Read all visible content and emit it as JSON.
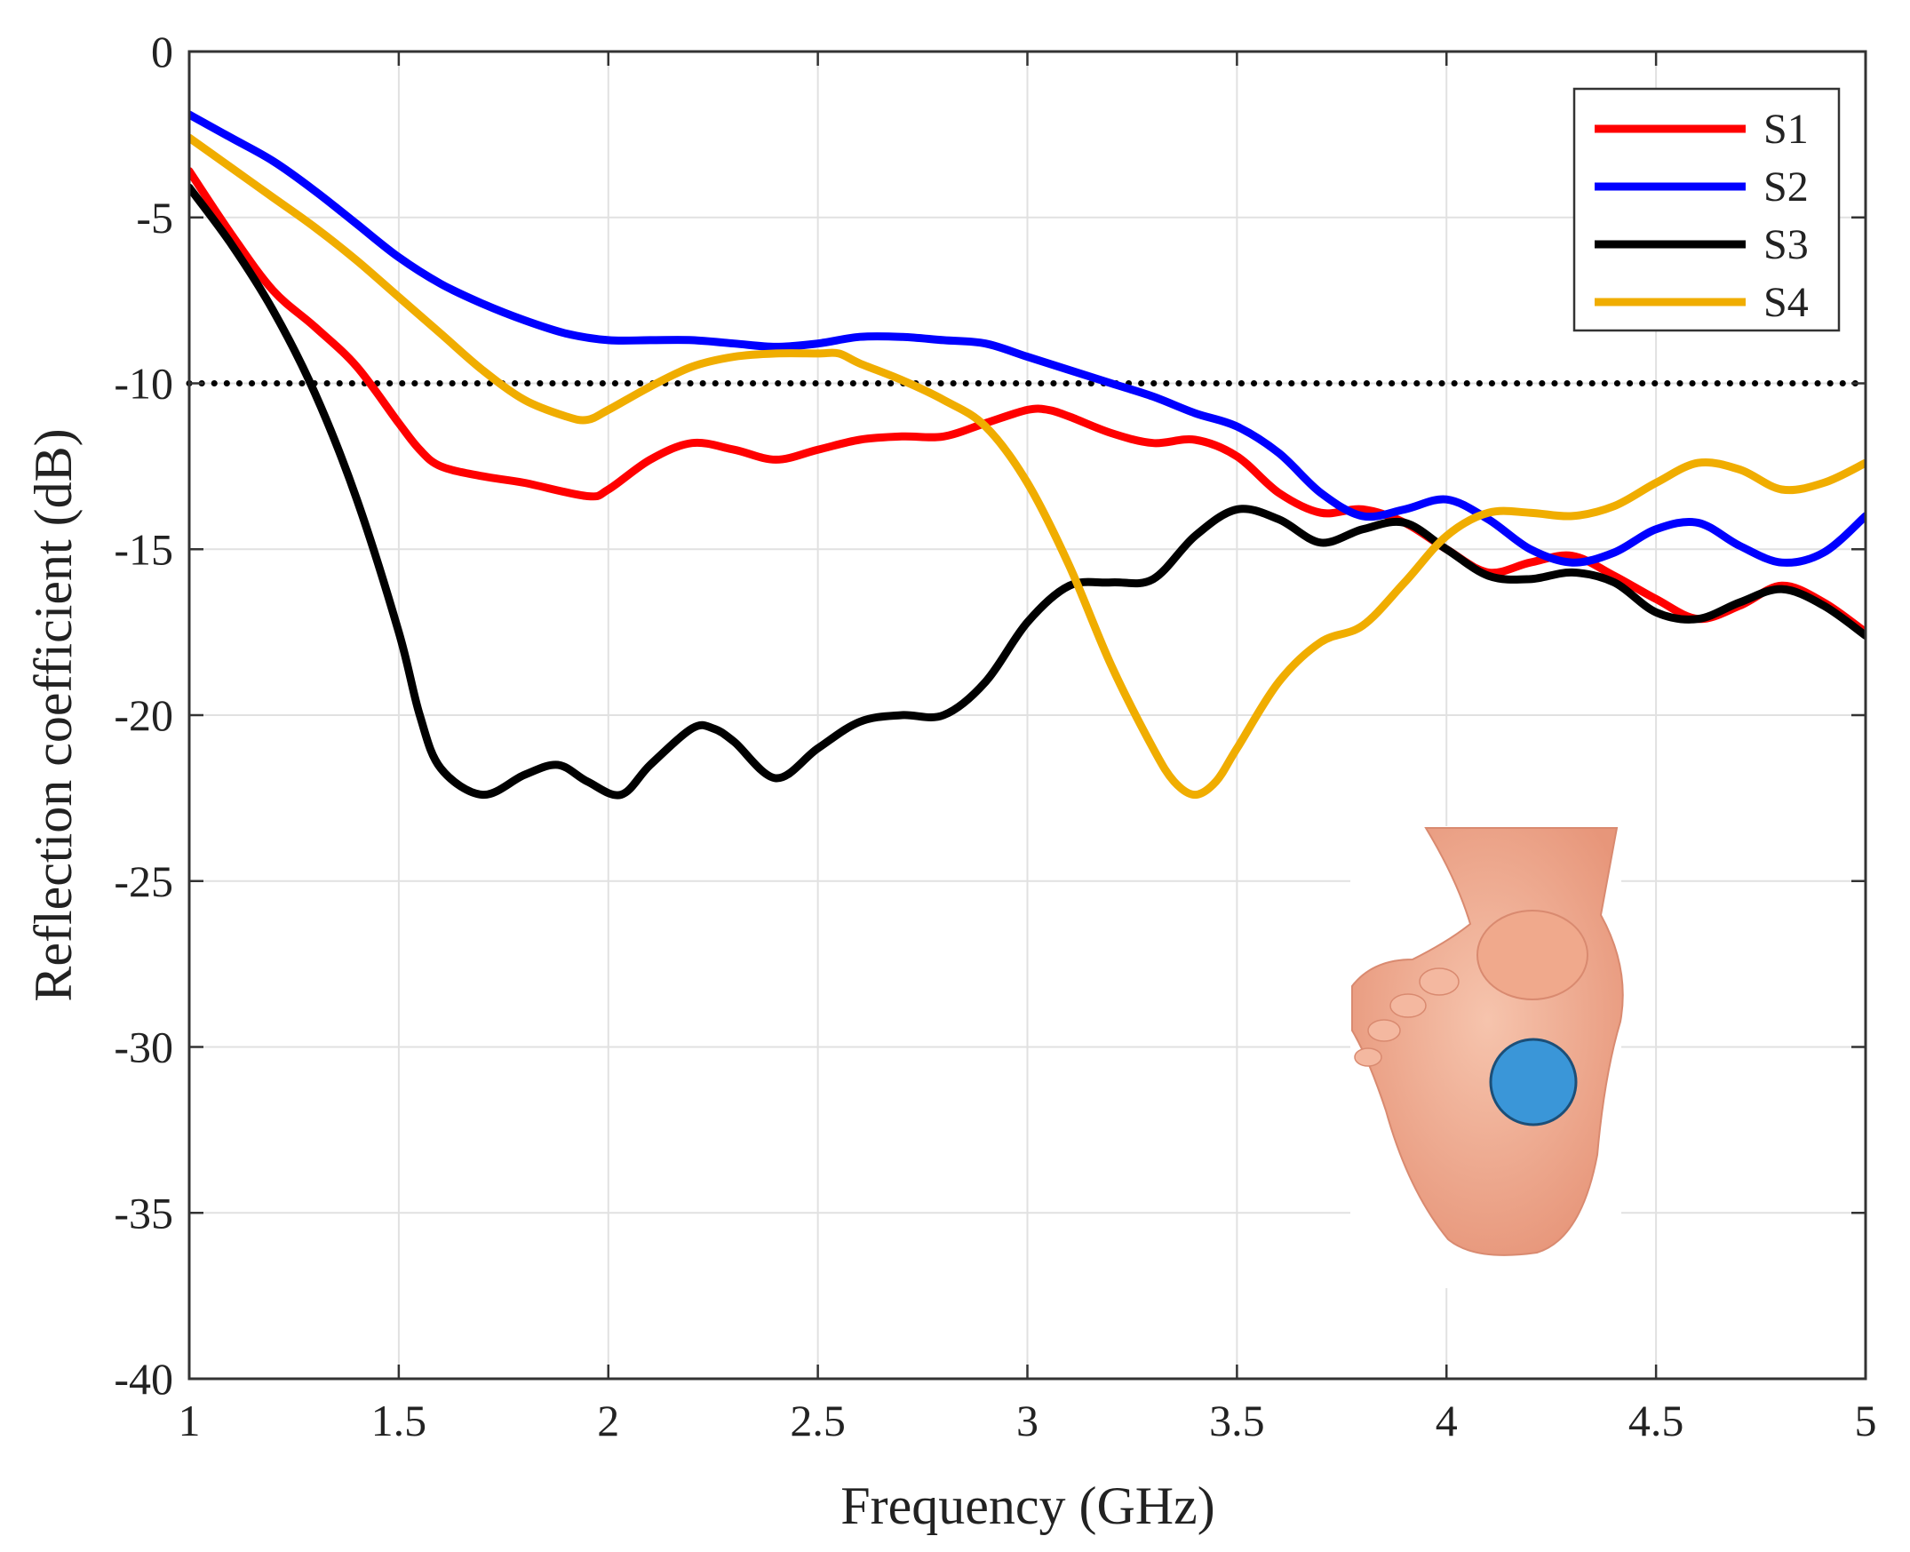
{
  "chart_data": {
    "type": "line",
    "title": "",
    "xlabel": "Frequency (GHz)",
    "ylabel": "Reflection coefficient (dB)",
    "xlim": [
      1,
      5
    ],
    "ylim": [
      -40,
      0
    ],
    "xticks": [
      1,
      1.5,
      2,
      2.5,
      3,
      3.5,
      4,
      4.5,
      5
    ],
    "yticks": [
      0,
      -5,
      -10,
      -15,
      -20,
      -25,
      -30,
      -35,
      -40
    ],
    "xtick_labels": [
      "1",
      "1.5",
      "2",
      "2.5",
      "3",
      "3.5",
      "4",
      "4.5",
      "5"
    ],
    "ytick_labels": [
      "0",
      "-5",
      "-10",
      "-15",
      "-20",
      "-25",
      "-30",
      "-35",
      "-40"
    ],
    "grid": true,
    "legend_position": "top-right",
    "reference_line": {
      "y": -10,
      "style": "dotted",
      "color": "#000000"
    },
    "series": [
      {
        "name": "S1",
        "color": "#ff0000",
        "x": [
          1.0,
          1.1,
          1.2,
          1.3,
          1.4,
          1.5,
          1.55,
          1.6,
          1.7,
          1.8,
          1.95,
          2.0,
          2.1,
          2.2,
          2.3,
          2.4,
          2.5,
          2.6,
          2.7,
          2.8,
          2.9,
          3.0,
          3.05,
          3.1,
          3.2,
          3.3,
          3.4,
          3.5,
          3.6,
          3.7,
          3.8,
          3.9,
          4.0,
          4.1,
          4.2,
          4.3,
          4.4,
          4.5,
          4.6,
          4.7,
          4.8,
          4.9,
          5.0
        ],
        "y": [
          -3.6,
          -5.5,
          -7.2,
          -8.3,
          -9.5,
          -11.2,
          -12.0,
          -12.5,
          -12.8,
          -13.0,
          -13.4,
          -13.2,
          -12.3,
          -11.8,
          -12.0,
          -12.3,
          -12.0,
          -11.7,
          -11.6,
          -11.6,
          -11.2,
          -10.8,
          -10.8,
          -11.0,
          -11.5,
          -11.8,
          -11.7,
          -12.2,
          -13.3,
          -13.9,
          -13.8,
          -14.2,
          -15.0,
          -15.7,
          -15.4,
          -15.2,
          -15.8,
          -16.5,
          -17.1,
          -16.7,
          -16.1,
          -16.6,
          -17.5
        ]
      },
      {
        "name": "S2",
        "color": "#0000ff",
        "x": [
          1.0,
          1.1,
          1.2,
          1.3,
          1.4,
          1.5,
          1.6,
          1.7,
          1.8,
          1.9,
          2.0,
          2.1,
          2.2,
          2.3,
          2.4,
          2.5,
          2.6,
          2.7,
          2.8,
          2.9,
          3.0,
          3.1,
          3.2,
          3.3,
          3.4,
          3.5,
          3.6,
          3.7,
          3.8,
          3.9,
          4.0,
          4.1,
          4.2,
          4.3,
          4.4,
          4.5,
          4.6,
          4.7,
          4.8,
          4.9,
          5.0
        ],
        "y": [
          -1.9,
          -2.6,
          -3.3,
          -4.2,
          -5.2,
          -6.2,
          -7.0,
          -7.6,
          -8.1,
          -8.5,
          -8.7,
          -8.7,
          -8.7,
          -8.8,
          -8.9,
          -8.8,
          -8.6,
          -8.6,
          -8.7,
          -8.8,
          -9.2,
          -9.6,
          -10.0,
          -10.4,
          -10.9,
          -11.3,
          -12.1,
          -13.3,
          -14.0,
          -13.8,
          -13.5,
          -14.1,
          -15.0,
          -15.4,
          -15.1,
          -14.4,
          -14.2,
          -14.9,
          -15.4,
          -15.1,
          -14.0
        ]
      },
      {
        "name": "S3",
        "color": "#000000",
        "x": [
          1.0,
          1.1,
          1.2,
          1.3,
          1.4,
          1.5,
          1.55,
          1.6,
          1.7,
          1.8,
          1.88,
          1.95,
          2.03,
          2.1,
          2.2,
          2.25,
          2.3,
          2.4,
          2.5,
          2.6,
          2.7,
          2.8,
          2.9,
          3.0,
          3.1,
          3.2,
          3.3,
          3.4,
          3.5,
          3.6,
          3.7,
          3.8,
          3.9,
          4.0,
          4.1,
          4.2,
          4.3,
          4.4,
          4.5,
          4.6,
          4.7,
          4.8,
          4.9,
          5.0
        ],
        "y": [
          -4.1,
          -5.8,
          -7.8,
          -10.3,
          -13.5,
          -17.5,
          -20.0,
          -21.6,
          -22.4,
          -21.8,
          -21.5,
          -22.0,
          -22.4,
          -21.5,
          -20.4,
          -20.4,
          -20.8,
          -21.9,
          -21.0,
          -20.2,
          -20.0,
          -20.0,
          -19.0,
          -17.2,
          -16.1,
          -16.0,
          -15.9,
          -14.6,
          -13.8,
          -14.1,
          -14.8,
          -14.4,
          -14.2,
          -15.0,
          -15.8,
          -15.9,
          -15.7,
          -16.0,
          -16.9,
          -17.1,
          -16.6,
          -16.2,
          -16.7,
          -17.6
        ]
      },
      {
        "name": "S4",
        "color": "#f0ad00",
        "x": [
          1.0,
          1.1,
          1.2,
          1.3,
          1.4,
          1.5,
          1.6,
          1.7,
          1.8,
          1.9,
          1.95,
          2.0,
          2.1,
          2.2,
          2.3,
          2.4,
          2.5,
          2.55,
          2.6,
          2.7,
          2.8,
          2.9,
          3.0,
          3.1,
          3.2,
          3.3,
          3.35,
          3.4,
          3.45,
          3.5,
          3.6,
          3.7,
          3.8,
          3.9,
          4.0,
          4.1,
          4.2,
          4.3,
          4.4,
          4.5,
          4.6,
          4.7,
          4.8,
          4.9,
          5.0
        ],
        "y": [
          -2.6,
          -3.5,
          -4.4,
          -5.3,
          -6.3,
          -7.4,
          -8.5,
          -9.6,
          -10.5,
          -11.0,
          -11.1,
          -10.8,
          -10.1,
          -9.5,
          -9.2,
          -9.1,
          -9.1,
          -9.1,
          -9.4,
          -9.9,
          -10.5,
          -11.3,
          -13.0,
          -15.5,
          -18.5,
          -21.0,
          -22.0,
          -22.4,
          -22.0,
          -21.0,
          -19.0,
          -17.8,
          -17.3,
          -16.0,
          -14.6,
          -13.9,
          -13.9,
          -14.0,
          -13.7,
          -13.0,
          -12.4,
          -12.6,
          -13.2,
          -13.0,
          -12.4
        ]
      }
    ]
  }
}
